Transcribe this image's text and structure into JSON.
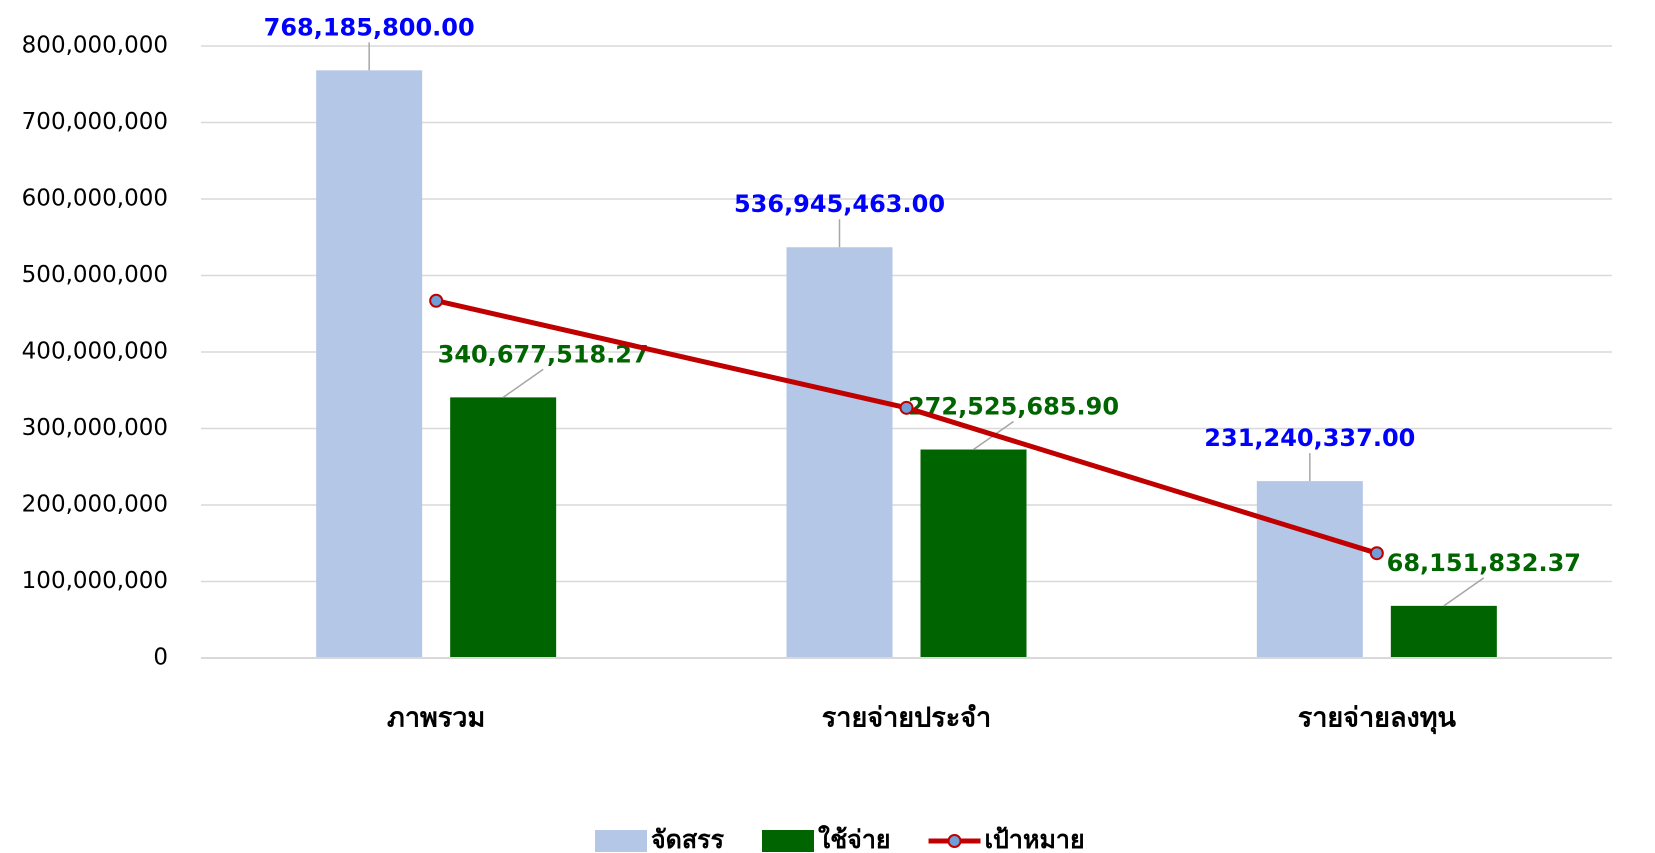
{
  "chart_data": {
    "type": "bar",
    "categories": [
      "ภาพรวม",
      "รายจ่ายประจำ",
      "รายจ่ายลงทุน"
    ],
    "series": [
      {
        "name": "จัดสรร",
        "type": "bar",
        "color": "#b4c7e7",
        "label_color": "#0000ff",
        "values": [
          768185800,
          536945463,
          231240337
        ],
        "value_labels": [
          "768,185,800.00",
          "536,945,463.00",
          "231,240,337.00"
        ]
      },
      {
        "name": "ใช้จ่าย",
        "type": "bar",
        "color": "#006400",
        "label_color": "#006400",
        "values": [
          340677518.27,
          272525685.9,
          68151832.37
        ],
        "value_labels": [
          "340,677,518.27",
          "272,525,685.90",
          "68,151,832.37"
        ]
      },
      {
        "name": "เป้าหมาย",
        "type": "line",
        "color": "#c00000",
        "marker_color": "#6f9fd8",
        "values": [
          467000000,
          327000000,
          137000000
        ]
      }
    ],
    "ylim": [
      0,
      800000000
    ],
    "yticks": [
      0,
      {
        "value": 100000000,
        "label": "100,000,000"
      },
      {
        "value": 200000000,
        "label": "200,000,000"
      },
      {
        "value": 300000000,
        "label": "300,000,000"
      },
      {
        "value": 400000000,
        "label": "400,000,000"
      },
      {
        "value": 500000000,
        "label": "500,000,000"
      },
      {
        "value": 600000000,
        "label": "600,000,000"
      },
      {
        "value": 700000000,
        "label": "700,000,000"
      },
      {
        "value": 800000000,
        "label": "800,000,000"
      }
    ],
    "grid": true,
    "legend": "bottom"
  }
}
